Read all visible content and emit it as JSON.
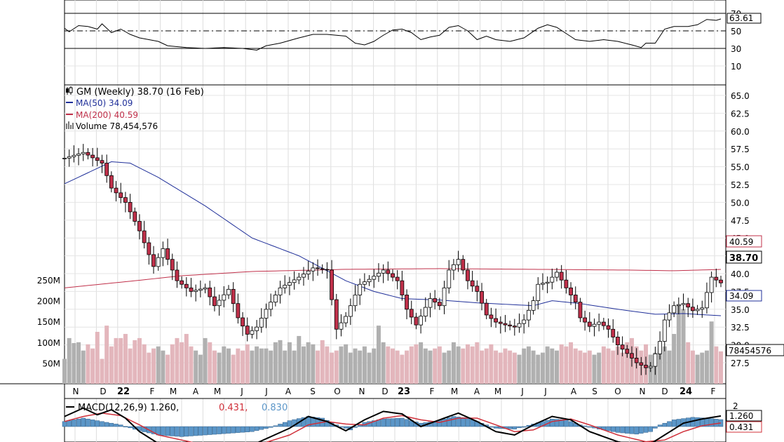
{
  "title": "GM (Weekly) 38.70 (16 Feb)",
  "rsi": {
    "label_value": "63.61",
    "ticks": [
      "70",
      "50",
      "30",
      "10"
    ],
    "levels": [
      70,
      50,
      30
    ]
  },
  "price_panel": {
    "ticks": [
      "65.0",
      "62.5",
      "60.0",
      "57.5",
      "55.0",
      "52.5",
      "50.0",
      "47.5",
      "45.0",
      "42.5",
      "40.0",
      "37.5",
      "35.0",
      "32.5",
      "30.0",
      "27.5"
    ],
    "legend": {
      "ma50": "MA(50) 34.09",
      "ma200": "MA(200) 40.59",
      "volume": "Volume 78,454,576"
    },
    "labels": {
      "ma200": "40.59",
      "last": "38.70",
      "ma50": "34.09",
      "volume": "78454576"
    },
    "volume_ticks": [
      "250M",
      "200M",
      "150M",
      "100M",
      "50M"
    ]
  },
  "macd": {
    "legend_main": "MACD(12,26,9) 1.260,",
    "legend_signal": "0.431,",
    "legend_hist": "0.830",
    "label_macd": "1.260",
    "label_signal": "0.431",
    "tick_top": "2"
  },
  "x_labels": [
    "N",
    "D",
    "22",
    "F",
    "M",
    "A",
    "M",
    "J",
    "J",
    "A",
    "S",
    "O",
    "N",
    "D",
    "23",
    "F",
    "M",
    "A",
    "M",
    "J",
    "J",
    "A",
    "S",
    "O",
    "N",
    "D",
    "24",
    "F"
  ],
  "colors": {
    "up": "#ffffff",
    "down": "#c0304a",
    "ma50": "#1f2f99",
    "ma200": "#c0304a",
    "macd_hist": "#5b96c8",
    "vol_up": "#b0b0b0",
    "vol_down": "#e3b6bc"
  },
  "chart_data": {
    "type": "candlestick",
    "title": "GM (Weekly) 38.70 (16 Feb)",
    "price_range": [
      25.5,
      65.0
    ],
    "close_anchors": [
      [
        0,
        56.2
      ],
      [
        4,
        57.0
      ],
      [
        8,
        55.5
      ],
      [
        10,
        52.0
      ],
      [
        13,
        50.0
      ],
      [
        16,
        46.0
      ],
      [
        19,
        41.0
      ],
      [
        21,
        43.5
      ],
      [
        24,
        39.0
      ],
      [
        27,
        37.5
      ],
      [
        30,
        38.0
      ],
      [
        32,
        35.5
      ],
      [
        35,
        37.8
      ],
      [
        37,
        33.8
      ],
      [
        39,
        31.5
      ],
      [
        41,
        32.5
      ],
      [
        43,
        35.0
      ],
      [
        46,
        38.0
      ],
      [
        50,
        39.5
      ],
      [
        53,
        40.8
      ],
      [
        56,
        40.5
      ],
      [
        58,
        32.2
      ],
      [
        60,
        34.0
      ],
      [
        63,
        38.5
      ],
      [
        65,
        39.2
      ],
      [
        68,
        40.5
      ],
      [
        71,
        39.0
      ],
      [
        73,
        35.0
      ],
      [
        75,
        32.8
      ],
      [
        78,
        36.5
      ],
      [
        80,
        35.5
      ],
      [
        82,
        40.5
      ],
      [
        84,
        42.0
      ],
      [
        86,
        39.0
      ],
      [
        88,
        37.5
      ],
      [
        90,
        34.2
      ],
      [
        92,
        33.2
      ],
      [
        94,
        32.8
      ],
      [
        96,
        32.5
      ],
      [
        98,
        33.5
      ],
      [
        100,
        36.2
      ],
      [
        101,
        38.5
      ],
      [
        103,
        38.8
      ],
      [
        105,
        40.2
      ],
      [
        107,
        38.0
      ],
      [
        109,
        36.0
      ],
      [
        110,
        33.8
      ],
      [
        112,
        32.6
      ],
      [
        114,
        33.2
      ],
      [
        116,
        32.2
      ],
      [
        118,
        30.0
      ],
      [
        120,
        28.8
      ],
      [
        122,
        27.5
      ],
      [
        124,
        26.8
      ],
      [
        125,
        27.0
      ],
      [
        127,
        30.5
      ],
      [
        128,
        33.5
      ],
      [
        130,
        35.5
      ],
      [
        132,
        35.8
      ],
      [
        134,
        34.8
      ],
      [
        136,
        35.2
      ],
      [
        138,
        39.5
      ],
      [
        140,
        38.7
      ]
    ],
    "moving_averages": {
      "ma50": [
        [
          0,
          52.6
        ],
        [
          10,
          55.7
        ],
        [
          14,
          55.5
        ],
        [
          20,
          53.5
        ],
        [
          30,
          49.5
        ],
        [
          40,
          45.0
        ],
        [
          50,
          42.5
        ],
        [
          60,
          39.0
        ],
        [
          66,
          37.5
        ],
        [
          72,
          36.5
        ],
        [
          80,
          36.3
        ],
        [
          88,
          35.9
        ],
        [
          100,
          35.5
        ],
        [
          104,
          36.2
        ],
        [
          110,
          35.8
        ],
        [
          118,
          35.0
        ],
        [
          126,
          34.3
        ],
        [
          132,
          34.4
        ],
        [
          140,
          34.09
        ]
      ],
      "ma200": [
        [
          0,
          38.0
        ],
        [
          15,
          39.0
        ],
        [
          25,
          39.7
        ],
        [
          40,
          40.3
        ],
        [
          60,
          40.6
        ],
        [
          80,
          40.7
        ],
        [
          100,
          40.6
        ],
        [
          120,
          40.5
        ],
        [
          130,
          40.4
        ],
        [
          140,
          40.59
        ]
      ]
    },
    "rsi_series": [
      [
        0,
        53
      ],
      [
        1,
        49
      ],
      [
        3,
        56
      ],
      [
        5,
        55
      ],
      [
        7,
        52
      ],
      [
        8,
        58
      ],
      [
        10,
        48
      ],
      [
        12,
        52
      ],
      [
        14,
        46
      ],
      [
        16,
        42
      ],
      [
        20,
        38
      ],
      [
        22,
        33
      ],
      [
        26,
        31
      ],
      [
        30,
        30
      ],
      [
        34,
        31
      ],
      [
        38,
        30
      ],
      [
        41,
        28
      ],
      [
        43,
        33
      ],
      [
        46,
        36
      ],
      [
        50,
        42
      ],
      [
        53,
        46
      ],
      [
        56,
        46
      ],
      [
        60,
        44
      ],
      [
        62,
        36
      ],
      [
        64,
        34
      ],
      [
        66,
        38
      ],
      [
        68,
        45
      ],
      [
        70,
        51
      ],
      [
        72,
        52
      ],
      [
        74,
        48
      ],
      [
        76,
        40
      ],
      [
        78,
        43
      ],
      [
        80,
        45
      ],
      [
        82,
        54
      ],
      [
        84,
        56
      ],
      [
        86,
        50
      ],
      [
        88,
        40
      ],
      [
        90,
        44
      ],
      [
        92,
        40
      ],
      [
        95,
        38
      ],
      [
        98,
        42
      ],
      [
        101,
        53
      ],
      [
        103,
        57
      ],
      [
        105,
        54
      ],
      [
        107,
        47
      ],
      [
        109,
        40
      ],
      [
        112,
        38
      ],
      [
        115,
        40
      ],
      [
        118,
        38
      ],
      [
        121,
        34
      ],
      [
        123,
        31
      ],
      [
        124,
        36
      ],
      [
        126,
        36
      ],
      [
        128,
        52
      ],
      [
        130,
        55
      ],
      [
        133,
        55
      ],
      [
        135,
        57
      ],
      [
        137,
        63
      ],
      [
        139,
        62
      ],
      [
        140,
        63.6
      ]
    ],
    "volume_millions": [
      60,
      110,
      98,
      100,
      80,
      95,
      85,
      125,
      60,
      140,
      90,
      110,
      110,
      120,
      85,
      105,
      110,
      95,
      75,
      85,
      90,
      80,
      70,
      95,
      110,
      100,
      120,
      90,
      80,
      70,
      110,
      100,
      80,
      75,
      90,
      85,
      70,
      85,
      80,
      95,
      80,
      90,
      85,
      85,
      80,
      100,
      105,
      80,
      100,
      80,
      115,
      90,
      100,
      95,
      80,
      105,
      90,
      75,
      80,
      90,
      95,
      75,
      85,
      80,
      90,
      75,
      85,
      140,
      100,
      90,
      85,
      80,
      70,
      80,
      90,
      95,
      100,
      85,
      80,
      85,
      90,
      75,
      80,
      100,
      90,
      85,
      95,
      90,
      100,
      80,
      85,
      95,
      80,
      75,
      85,
      80,
      75,
      70,
      85,
      90,
      80,
      70,
      75,
      90,
      85,
      80,
      95,
      90,
      100,
      85,
      80,
      75,
      80,
      70,
      75,
      90,
      85,
      80,
      90,
      75,
      100,
      110,
      90,
      80,
      95,
      70,
      75,
      85,
      90,
      80,
      120,
      190,
      180,
      100,
      80,
      70,
      75,
      80,
      150,
      90,
      78
    ],
    "macd_hist_series": [
      [
        0,
        0.6
      ],
      [
        4,
        1.0
      ],
      [
        8,
        0.6
      ],
      [
        12,
        0.2
      ],
      [
        16,
        -0.5
      ],
      [
        20,
        -1.0
      ],
      [
        25,
        -1.2
      ],
      [
        30,
        -1.0
      ],
      [
        35,
        -0.8
      ],
      [
        40,
        -0.6
      ],
      [
        44,
        -0.1
      ],
      [
        48,
        0.7
      ],
      [
        52,
        1.2
      ],
      [
        55,
        1.0
      ],
      [
        58,
        0.2
      ],
      [
        61,
        -0.4
      ],
      [
        64,
        0.5
      ],
      [
        68,
        0.9
      ],
      [
        72,
        1.0
      ],
      [
        76,
        0.4
      ],
      [
        79,
        0.6
      ],
      [
        83,
        1.2
      ],
      [
        86,
        1.0
      ],
      [
        89,
        0.4
      ],
      [
        92,
        -0.2
      ],
      [
        96,
        -0.3
      ],
      [
        100,
        0.3
      ],
      [
        104,
        0.9
      ],
      [
        107,
        0.8
      ],
      [
        110,
        0.2
      ],
      [
        114,
        -0.3
      ],
      [
        118,
        -0.7
      ],
      [
        122,
        -0.9
      ],
      [
        125,
        -0.6
      ],
      [
        127,
        0.2
      ],
      [
        130,
        0.8
      ],
      [
        134,
        1.1
      ],
      [
        137,
        1.0
      ],
      [
        140,
        0.83
      ]
    ],
    "macd_line_series": [
      [
        0,
        1.2
      ],
      [
        4,
        2.2
      ],
      [
        7,
        1.4
      ],
      [
        10,
        2.0
      ],
      [
        13,
        1.0
      ],
      [
        16,
        -0.6
      ],
      [
        20,
        -2.0
      ],
      [
        30,
        -2.6
      ],
      [
        40,
        -2.2
      ],
      [
        48,
        -0.2
      ],
      [
        52,
        1.2
      ],
      [
        56,
        0.6
      ],
      [
        60,
        -0.5
      ],
      [
        64,
        0.8
      ],
      [
        68,
        1.8
      ],
      [
        72,
        1.5
      ],
      [
        76,
        0.0
      ],
      [
        80,
        0.8
      ],
      [
        84,
        1.6
      ],
      [
        88,
        0.6
      ],
      [
        92,
        -0.6
      ],
      [
        96,
        -1.0
      ],
      [
        100,
        0.2
      ],
      [
        104,
        1.2
      ],
      [
        108,
        0.8
      ],
      [
        112,
        -0.6
      ],
      [
        118,
        -1.8
      ],
      [
        124,
        -2.4
      ],
      [
        128,
        -1.0
      ],
      [
        132,
        0.4
      ],
      [
        136,
        0.9
      ],
      [
        140,
        1.26
      ]
    ],
    "macd_signal_series": [
      [
        0,
        0.6
      ],
      [
        4,
        1.2
      ],
      [
        8,
        1.6
      ],
      [
        12,
        1.3
      ],
      [
        16,
        0.2
      ],
      [
        20,
        -1.0
      ],
      [
        30,
        -2.2
      ],
      [
        40,
        -2.4
      ],
      [
        48,
        -1.0
      ],
      [
        52,
        0.2
      ],
      [
        56,
        0.6
      ],
      [
        60,
        0.3
      ],
      [
        64,
        0.2
      ],
      [
        68,
        1.0
      ],
      [
        72,
        1.3
      ],
      [
        76,
        0.8
      ],
      [
        80,
        0.5
      ],
      [
        84,
        1.0
      ],
      [
        88,
        1.0
      ],
      [
        92,
        0.2
      ],
      [
        96,
        -0.6
      ],
      [
        100,
        -0.4
      ],
      [
        104,
        0.6
      ],
      [
        108,
        0.9
      ],
      [
        112,
        0.2
      ],
      [
        118,
        -1.0
      ],
      [
        124,
        -1.8
      ],
      [
        128,
        -1.6
      ],
      [
        132,
        -0.6
      ],
      [
        136,
        0.1
      ],
      [
        140,
        0.43
      ]
    ],
    "bars": 141
  }
}
